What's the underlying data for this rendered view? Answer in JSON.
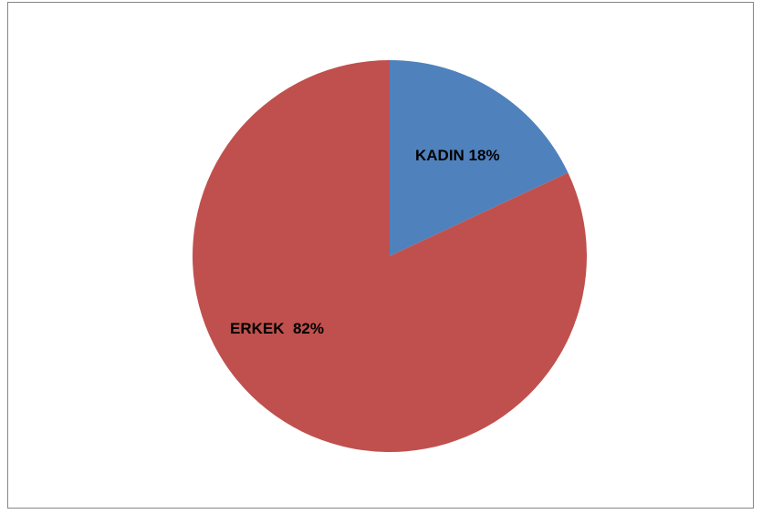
{
  "chart_data": {
    "type": "pie",
    "categories": [
      "KADIN",
      "ERKEK"
    ],
    "values": [
      18,
      82
    ],
    "labels": [
      "KADIN 18%",
      "ERKEK  82%"
    ],
    "colors": [
      "#4F81BD",
      "#C0504D"
    ],
    "start_angle_deg": 0,
    "direction": "clockwise",
    "legend": "none",
    "grid": false
  }
}
